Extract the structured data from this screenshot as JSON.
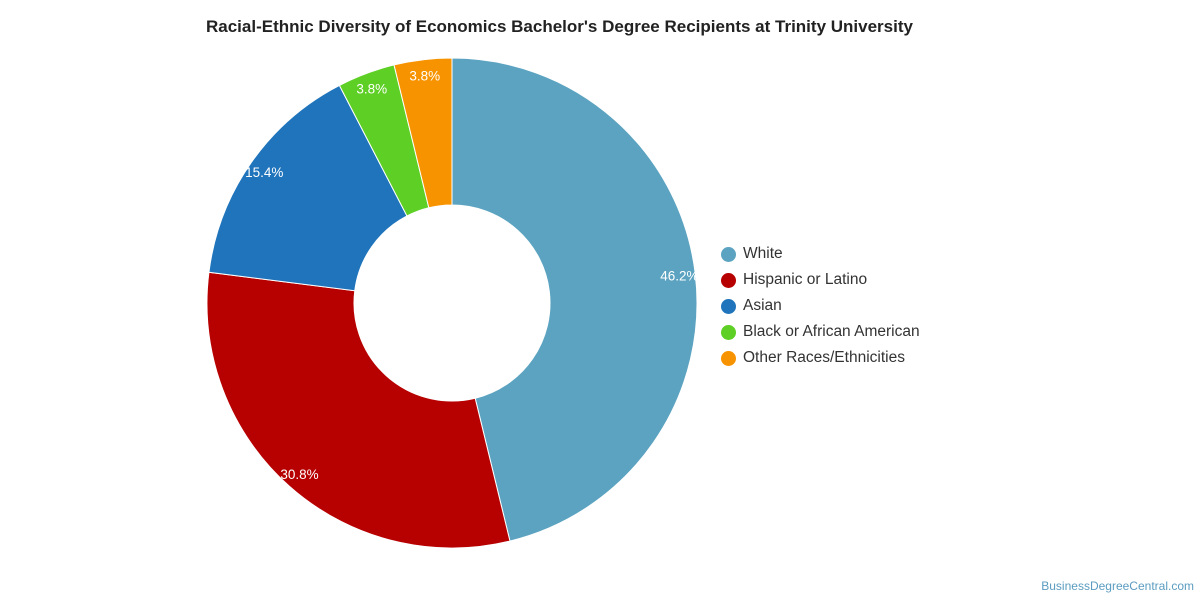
{
  "chart_data": {
    "type": "pie",
    "variant": "donut",
    "title": "Racial-Ethnic Diversity of Economics Bachelor's Degree Recipients at Trinity University",
    "categories": [
      "White",
      "Hispanic or Latino",
      "Asian",
      "Black or African American",
      "Other Races/Ethnicities"
    ],
    "values": [
      46.2,
      30.8,
      15.4,
      3.8,
      3.8
    ],
    "labels": [
      "46.2%",
      "30.8%",
      "15.4%",
      "3.8%",
      "3.8%"
    ],
    "colors": [
      "#5ba3c0",
      "#b70000",
      "#1f74bb",
      "#5ecf24",
      "#f89300"
    ],
    "legend_position": "right"
  },
  "credit": "BusinessDegreeCentral.com"
}
